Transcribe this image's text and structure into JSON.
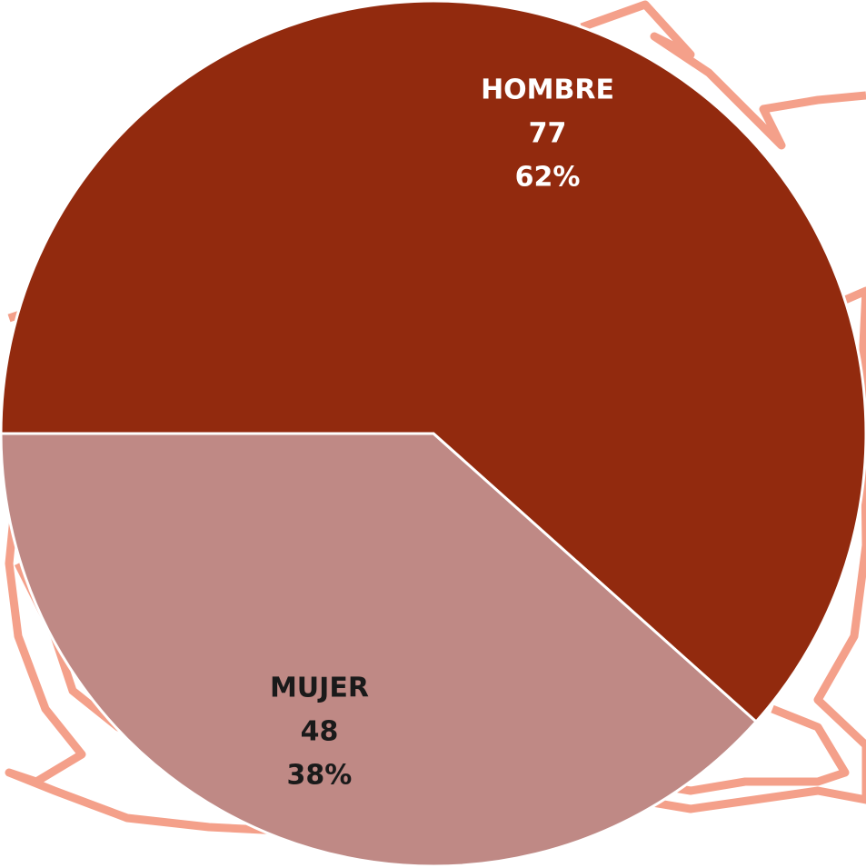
{
  "chart_data": {
    "type": "pie",
    "categories": [
      "HOMBRE",
      "MUJER"
    ],
    "values": [
      77,
      48
    ],
    "percent_labels": [
      "62%",
      "38%"
    ],
    "colors": [
      "#922a0e",
      "#bf8985"
    ]
  }
}
